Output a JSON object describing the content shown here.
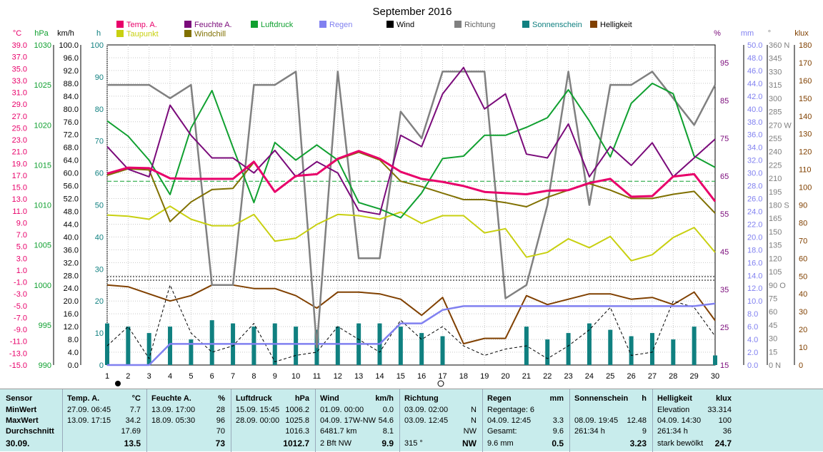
{
  "chart_data": {
    "type": "line",
    "title": "September 2016",
    "x": [
      1,
      2,
      3,
      4,
      5,
      6,
      7,
      8,
      9,
      10,
      11,
      12,
      13,
      14,
      15,
      16,
      17,
      18,
      19,
      20,
      21,
      22,
      23,
      24,
      25,
      26,
      27,
      28,
      29,
      30
    ],
    "legend": [
      {
        "name": "Temp. A.",
        "color": "#e8006a"
      },
      {
        "name": "Feuchte A.",
        "color": "#7a0a7a"
      },
      {
        "name": "Luftdruck",
        "color": "#10a030"
      },
      {
        "name": "Regen",
        "color": "#8080f0"
      },
      {
        "name": "Wind",
        "color": "#000000"
      },
      {
        "name": "Richtung",
        "color": "#808080"
      },
      {
        "name": "Sonnenschein",
        "color": "#108080"
      },
      {
        "name": "Helligkeit",
        "color": "#804000"
      },
      {
        "name": "Taupunkt",
        "color": "#c8d010"
      },
      {
        "name": "Windchill",
        "color": "#807000"
      }
    ],
    "axes": [
      {
        "unit": "°C",
        "color": "#e8006a",
        "ticks": [
          "39.0",
          "37.0",
          "35.0",
          "33.0",
          "31.0",
          "29.0",
          "27.0",
          "25.0",
          "23.0",
          "21.0",
          "19.0",
          "17.0",
          "15.0",
          "13.0",
          "11.0",
          "9.0",
          "7.0",
          "5.0",
          "3.0",
          "1.0",
          "-1.0",
          "-3.0",
          "-5.0",
          "-7.0",
          "-9.0",
          "-11.0",
          "-13.0",
          "-15.0"
        ]
      },
      {
        "unit": "hPa",
        "color": "#10a030",
        "ticks": [
          "1030",
          "1025",
          "1020",
          "1015",
          "1010",
          "1005",
          "1000",
          "995",
          "990"
        ]
      },
      {
        "unit": "km/h",
        "color": "#000000",
        "ticks": [
          "100.0",
          "96.0",
          "92.0",
          "88.0",
          "84.0",
          "80.0",
          "76.0",
          "72.0",
          "68.0",
          "64.0",
          "60.0",
          "56.0",
          "52.0",
          "48.0",
          "44.0",
          "40.0",
          "36.0",
          "32.0",
          "28.0",
          "24.0",
          "20.0",
          "16.0",
          "12.0",
          "8.0",
          "4.0",
          "0.0"
        ]
      },
      {
        "unit": "h",
        "color": "#108080",
        "ticks": [
          "100",
          "90",
          "80",
          "70",
          "60",
          "50",
          "40",
          "30",
          "20",
          "10",
          "0"
        ]
      },
      {
        "unit": "%",
        "color": "#7a0a7a",
        "ticks": [
          "95",
          "85",
          "75",
          "65",
          "55",
          "45",
          "35",
          "25",
          "15"
        ]
      },
      {
        "unit": "mm",
        "color": "#8080f0",
        "ticks": [
          "50.0",
          "48.0",
          "46.0",
          "44.0",
          "42.0",
          "40.0",
          "38.0",
          "36.0",
          "34.0",
          "32.0",
          "30.0",
          "28.0",
          "26.0",
          "24.0",
          "22.0",
          "20.0",
          "18.0",
          "16.0",
          "14.0",
          "12.0",
          "10.0",
          "8.0",
          "6.0",
          "4.0",
          "2.0",
          "0.0"
        ]
      },
      {
        "unit": "°",
        "color": "#808080",
        "ticks": [
          "360 N",
          "345",
          "330",
          "315",
          "300",
          "285",
          "270 W",
          "255",
          "240",
          "225",
          "210",
          "195",
          "180 S",
          "165",
          "150",
          "135",
          "120",
          "105",
          "90 O",
          "75",
          "60",
          "45",
          "30",
          "15",
          "0 N"
        ]
      },
      {
        "unit": "klux",
        "color": "#804000",
        "ticks": [
          "180",
          "170",
          "160",
          "150",
          "140",
          "130",
          "120",
          "110",
          "100",
          "90",
          "80",
          "70",
          "60",
          "50",
          "40",
          "30",
          "20",
          "10",
          "0"
        ]
      }
    ],
    "series": [
      {
        "name": "Temp. A.",
        "values": [
          17.3,
          18.3,
          18.2,
          16.5,
          16.4,
          16.4,
          16.4,
          19.3,
          14.2,
          16.9,
          17.2,
          19.8,
          21.1,
          19.8,
          17.6,
          16.4,
          15.9,
          15.2,
          14.2,
          14.0,
          13.8,
          14.4,
          14.5,
          15.7,
          16.4,
          13.4,
          13.5,
          16.8,
          17.2,
          12.6
        ]
      },
      {
        "name": "Feuchte A.",
        "values": [
          73,
          67,
          65,
          84,
          76,
          70,
          70,
          66,
          72,
          65,
          69,
          66,
          56,
          55,
          76,
          73,
          87,
          94,
          83,
          87,
          71,
          70,
          79,
          65,
          73,
          68,
          74,
          65,
          70,
          75
        ]
      },
      {
        "name": "Luftdruck",
        "values": [
          1020.5,
          1018.6,
          1015.6,
          1011.3,
          1019.6,
          1024.3,
          1017.2,
          1010.3,
          1017.8,
          1015.6,
          1017.5,
          1015.6,
          1010.3,
          1009.5,
          1008.4,
          1011.5,
          1015.8,
          1016.1,
          1018.7,
          1018.7,
          1019.7,
          1020.9,
          1024.4,
          1020.5,
          1016.0,
          1022.7,
          1025.2,
          1023.9,
          1016.1,
          1014.7
        ]
      },
      {
        "name": "Regen",
        "values": [
          0,
          0,
          0,
          3.3,
          3.3,
          3.3,
          3.3,
          3.3,
          3.3,
          3.3,
          3.3,
          3.3,
          3.3,
          3.3,
          6.5,
          6.5,
          8.6,
          9.2,
          9.2,
          9.2,
          9.2,
          9.2,
          9.2,
          9.2,
          9.2,
          9.2,
          9.2,
          9.2,
          9.2,
          9.6
        ]
      },
      {
        "name": "Wind",
        "values": [
          6,
          12,
          2,
          25,
          10,
          4,
          6,
          13,
          1,
          3,
          4,
          12,
          8,
          4,
          14,
          8,
          12,
          6,
          3,
          5,
          6,
          2,
          6,
          11,
          18,
          3,
          4,
          20,
          18,
          9
        ]
      },
      {
        "name": "Richtung",
        "values": [
          315,
          315,
          315,
          300,
          315,
          90,
          90,
          315,
          315,
          330,
          20,
          330,
          120,
          120,
          285,
          255,
          330,
          330,
          330,
          75,
          90,
          180,
          330,
          180,
          315,
          315,
          330,
          300,
          270,
          315
        ]
      },
      {
        "name": "Sonnenschein",
        "values": [
          13,
          12,
          10,
          12,
          8,
          14,
          13,
          12,
          13,
          12,
          11,
          12,
          13,
          13,
          12,
          10,
          9,
          0,
          0,
          0,
          12,
          8,
          10,
          13,
          11,
          9,
          10,
          8,
          12,
          3
        ]
      },
      {
        "name": "Helligkeit",
        "values": [
          45,
          44,
          40,
          36,
          39,
          45,
          45,
          43,
          43,
          39,
          32,
          41,
          41,
          40,
          37,
          28,
          38,
          12,
          15,
          15,
          39,
          34,
          37,
          40,
          40,
          37,
          38,
          34,
          41,
          25
        ]
      },
      {
        "name": "Taupunkt",
        "values": [
          10.3,
          10.1,
          9.6,
          11.8,
          9.6,
          8.5,
          8.5,
          10.4,
          5.9,
          6.4,
          8.7,
          10.4,
          10.2,
          9.6,
          10.8,
          8.9,
          10.2,
          10.2,
          7.3,
          8.0,
          3.2,
          4.0,
          6.3,
          4.8,
          6.7,
          2.6,
          3.6,
          6.5,
          8.2,
          4.0
        ]
      },
      {
        "name": "Windchill",
        "values": [
          17.0,
          18.1,
          17.9,
          9.2,
          12.5,
          14.6,
          14.8,
          19.2,
          14.2,
          16.9,
          17.2,
          19.7,
          20.9,
          19.6,
          16.0,
          15.1,
          14.0,
          12.9,
          12.9,
          12.4,
          11.7,
          13.3,
          14.5,
          15.6,
          14.5,
          13.1,
          13.1,
          13.8,
          14.3,
          10.6
        ]
      }
    ],
    "reference_lines": [
      {
        "axis": "°C",
        "value": 16.0,
        "color": "#10a030"
      }
    ],
    "grid": true,
    "legend_position": "top"
  },
  "stats": {
    "sensor": {
      "title": "Sensor",
      "min": "MinWert",
      "max": "MaxWert",
      "avg": "Durchschnitt",
      "date": "30.09."
    },
    "temp": {
      "title": "Temp. A.",
      "unit": "°C",
      "r1a": "27.09.  06:45",
      "r1b": "7.7",
      "r2a": "13.09.  17:15",
      "r2b": "34.2",
      "r3b": "17.69",
      "r4b": "13.5"
    },
    "feuchte": {
      "title": "Feuchte A.",
      "unit": "%",
      "r1a": "13.09.  17:00",
      "r1b": "28",
      "r2a": "18.09.  05:30",
      "r2b": "96",
      "r3b": "70",
      "r4b": "73"
    },
    "druck": {
      "title": "Luftdruck",
      "unit": "hPa",
      "r1a": "15.09.  15:45",
      "r1b": "1006.2",
      "r2a": "28.09.  00:00",
      "r2b": "1025.8",
      "r3b": "1016.3",
      "r4b": "1012.7"
    },
    "wind": {
      "title": "Wind",
      "unit": "km/h",
      "r1a": "01.09.  00:00",
      "r1b": "0.0",
      "r2a": "04.09.  17W-NW",
      "r2b": "54.6",
      "r3a": "6481.7 km",
      "r3b": "8.1",
      "r4a": "2 Bft NW",
      "r4b": "9.9"
    },
    "richtung": {
      "title": "Richtung",
      "r1a": "03.09.  02:00",
      "r1b": "N",
      "r2a": "03.09.  12:45",
      "r2b": "N",
      "r3b": "NW",
      "r4a": "315 °",
      "r4b": "NW"
    },
    "regen": {
      "title": "Regen",
      "unit": "mm",
      "r1a": "Regentage: 6",
      "r2a": "04.09.  12:45",
      "r2b": "3.3",
      "r3a": "Gesamt:",
      "r3b": "9.6",
      "r4a": "9.6 mm",
      "r4b": "0.5"
    },
    "sonne": {
      "title": "Sonnenschein",
      "unit": "h",
      "r2a": "08.09.  19:45",
      "r2b": "12.48",
      "r3a": "261:34 h",
      "r3b": "9",
      "r4b": "3.23"
    },
    "hell": {
      "title": "Helligkeit",
      "unit": "klux",
      "r1a": "Elevation",
      "r1b": "33.314",
      "r2a": "04.09.  14:30",
      "r2b": "100",
      "r3a": "261:34 h",
      "r3b": "36",
      "r4a": "stark bewölkt",
      "r4b": "24.7"
    }
  }
}
